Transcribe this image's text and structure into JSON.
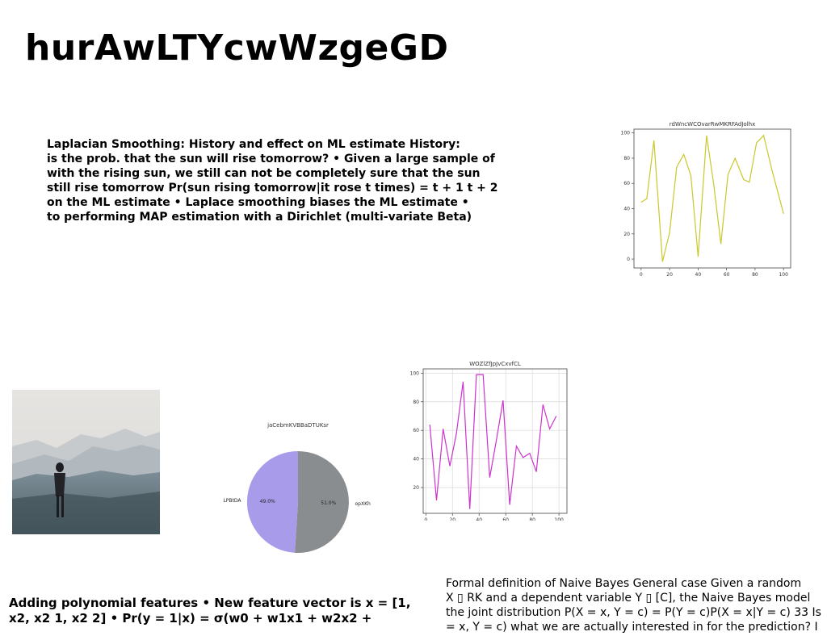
{
  "title": "hurAwLTYcwWzgeGD",
  "para1": "Laplacian Smoothing: History and effect on ML estimate History:\nis the prob. that the sun will rise tomorrow? • Given a large sample of\nwith the rising sun, we still can not be completely sure that the sun\nstill rise tomorrow Pr(sun rising tomorrow|it rose t times) = t + 1 t + 2\non the ML estimate • Laplace smoothing biases the ML estimate •\nto performing MAP estimation with a Dirichlet (multi-variate Beta)",
  "para2": "Adding polynomial features • New feature vector is x = [1,\nx2, x2 1, x2 2] • Pr(y = 1|x) = σ(w0 + w1x1 + w2x2 +",
  "para3": "Formal definition of Naive Bayes General case Given a random\nX ▯ RK and a dependent variable Y ▯ [C], the Naive Bayes model\nthe joint distribution P(X = x, Y = c) = P(Y = c)P(X = x|Y = c) 33 Is\n= x, Y = c) what we are actually interested in for the prediction? I",
  "chart_data": [
    {
      "type": "line",
      "title": "rdWncWCOvarRwMKRFAdJolhx",
      "color": "#c8c82a",
      "xlim": [
        -5,
        105
      ],
      "ylim": [
        -7,
        103
      ],
      "xticks": [
        0,
        20,
        40,
        60,
        80,
        100
      ],
      "yticks": [
        0,
        20,
        40,
        60,
        80,
        100
      ],
      "grid": false,
      "x": [
        0,
        4,
        9,
        15,
        20,
        25,
        30,
        35,
        40,
        46,
        51,
        56,
        61,
        66,
        72,
        76,
        81,
        86,
        92,
        100
      ],
      "y": [
        45,
        48,
        94,
        -2,
        21,
        73,
        83,
        66,
        2,
        98,
        59,
        12,
        67,
        80,
        63,
        61,
        92,
        98,
        70,
        36
      ]
    },
    {
      "type": "line",
      "title": "WOZlZfJpJvCxvfCL",
      "color": "#cc33cc",
      "xlim": [
        -2,
        106
      ],
      "ylim": [
        2,
        103
      ],
      "xticks": [
        0,
        20,
        40,
        60,
        80,
        100
      ],
      "yticks": [
        20,
        40,
        60,
        80,
        100
      ],
      "grid": true,
      "x": [
        3,
        8,
        13,
        18,
        23,
        28,
        33,
        38,
        43,
        48,
        53,
        58,
        63,
        68,
        73,
        78,
        83,
        88,
        93,
        98
      ],
      "y": [
        64,
        11,
        61,
        35,
        58,
        94,
        5,
        99,
        99,
        27,
        53,
        81,
        8,
        49,
        41,
        44,
        31,
        78,
        61,
        70
      ]
    },
    {
      "type": "pie",
      "title": "jaCebmKVBBaDTUKsr",
      "slices": [
        {
          "label": "LPBtDA",
          "value": 49.0,
          "pct_label": "49.0%",
          "color": "#a79bea"
        },
        {
          "label": "opXKh",
          "value": 51.0,
          "pct_label": "51.0%",
          "color": "#8a8d8f"
        }
      ]
    }
  ]
}
